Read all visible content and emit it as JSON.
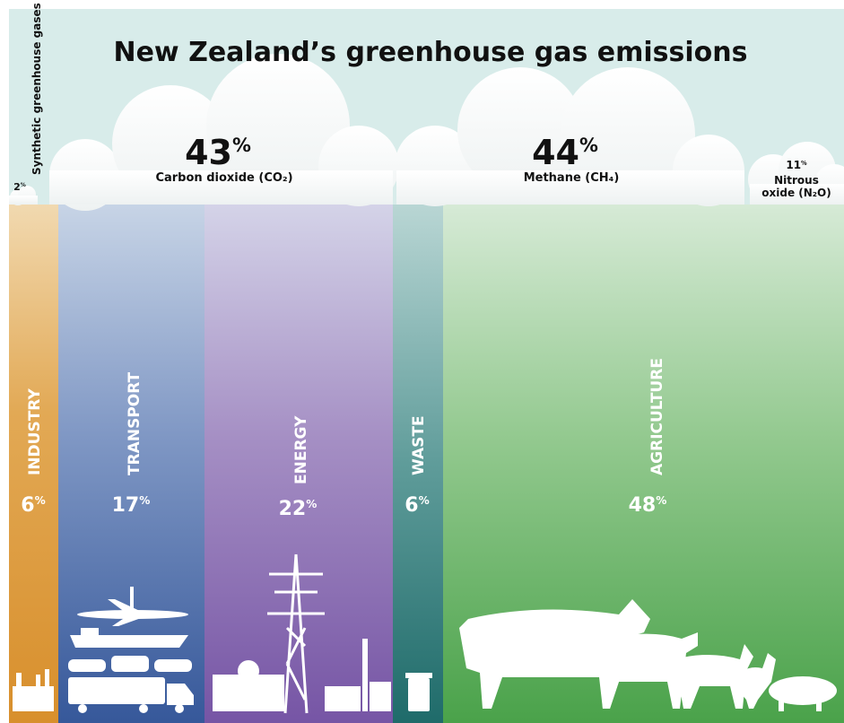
{
  "title": "New Zealand’s greenhouse gas emissions",
  "gases": [
    {
      "label": "Synthetic greenhouse gases",
      "value": "2",
      "unit": "%"
    },
    {
      "label": "Carbon dioxide (CO₂)",
      "value": "43",
      "unit": "%"
    },
    {
      "label": "Methane (CH₄)",
      "value": "44",
      "unit": "%"
    },
    {
      "label": "Nitrous oxide (N₂O)",
      "value": "11",
      "unit": "%"
    }
  ],
  "sectors": [
    {
      "label": "INDUSTRY",
      "value": "6",
      "unit": "%"
    },
    {
      "label": "TRANSPORT",
      "value": "17",
      "unit": "%"
    },
    {
      "label": "ENERGY",
      "value": "22",
      "unit": "%"
    },
    {
      "label": "WASTE",
      "value": "6",
      "unit": "%"
    },
    {
      "label": "AGRICULTURE",
      "value": "48",
      "unit": "%"
    }
  ]
}
